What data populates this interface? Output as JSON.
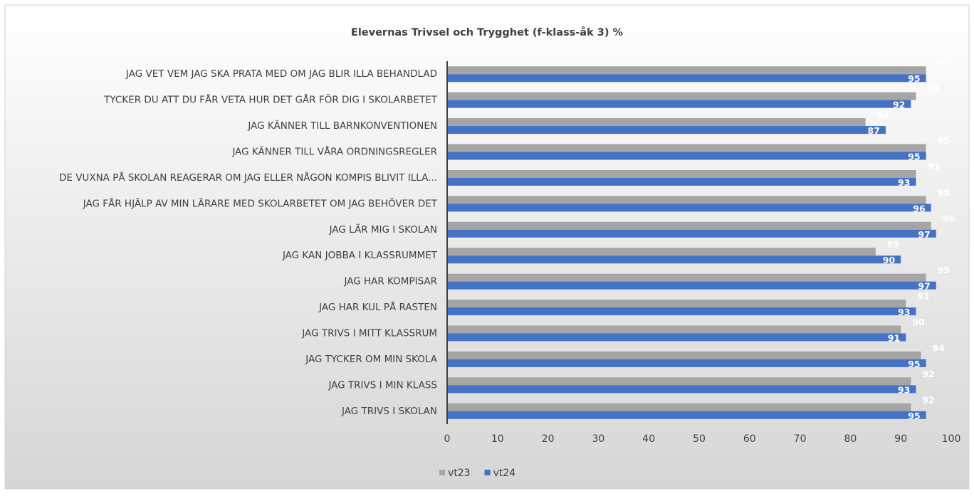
{
  "chart_data": {
    "type": "barh",
    "title": "Elevernas Trivsel och Trygghet (f-klass-åk 3) %",
    "categories": [
      "JAG VET VEM JAG SKA PRATA MED OM JAG BLIR ILLA BEHANDLAD",
      "TYCKER DU ATT DU FÅR VETA HUR DET GÅR FÖR DIG I SKOLARBETET",
      "JAG KÄNNER TILL BARNKONVENTIONEN",
      "JAG KÄNNER TILL VÅRA ORDNINGSREGLER",
      "DE VUXNA PÅ SKOLAN REAGERAR OM JAG ELLER NÅGON KOMPIS BLIVIT ILLA...",
      "JAG FÅR HJÄLP AV MIN LÄRARE MED SKOLARBETET OM JAG BEHÖVER DET",
      "JAG LÄR MIG I SKOLAN",
      "JAG KAN JOBBA I KLASSRUMMET",
      "JAG HAR KOMPISAR",
      "JAG HAR KUL PÅ RASTEN",
      "JAG TRIVS I MITT KLASSRUM",
      "JAG TYCKER OM MIN SKOLA",
      "JAG TRIVS I MIN KLASS",
      "JAG TRIVS I SKOLAN"
    ],
    "series": [
      {
        "name": "vt23",
        "color": "#a5a5a5",
        "values": [
          95,
          93,
          83,
          95,
          93,
          95,
          96,
          85,
          95,
          91,
          90,
          94,
          92,
          92
        ]
      },
      {
        "name": "vt24",
        "color": "#4472c4",
        "values": [
          95,
          92,
          87,
          95,
          93,
          96,
          97,
          90,
          97,
          93,
          91,
          95,
          93,
          95
        ]
      }
    ],
    "xlim": [
      0,
      100
    ],
    "xticks": [
      0,
      10,
      20,
      30,
      40,
      50,
      60,
      70,
      80,
      90,
      100
    ],
    "legend": "bottom"
  }
}
